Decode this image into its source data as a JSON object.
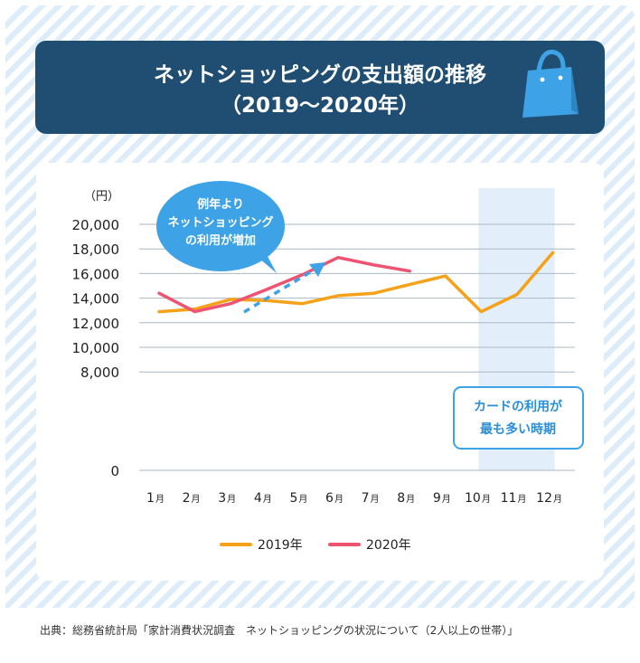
{
  "title": {
    "line1": "ネットショッピングの支出額の推移",
    "line2": "（2019〜2020年）"
  },
  "icons": {
    "title_icon": "shopping-bag-icon"
  },
  "source": "出典：総務省統計局「家計消費状況調査　ネットショッピングの状況について（2人以上の世帯）」",
  "chart_data": {
    "type": "line",
    "title": "ネットショッピングの支出額の推移（2019〜2020年）",
    "ylabel": "（円）",
    "xlabel": "",
    "ylim": [
      0,
      20000
    ],
    "yticks": [
      0,
      8000,
      10000,
      12000,
      14000,
      16000,
      18000,
      20000
    ],
    "ytick_labels": [
      "0",
      "8,000",
      "10,000",
      "12,000",
      "14,000",
      "16,000",
      "18,000",
      "20,000"
    ],
    "categories": [
      "1",
      "2",
      "3",
      "4",
      "5",
      "6",
      "7",
      "8",
      "9",
      "10",
      "11",
      "12"
    ],
    "month_suffix": "月",
    "series": [
      {
        "name": "2019年",
        "color": "#f5a21a",
        "values": [
          12900,
          13100,
          13900,
          13800,
          13550,
          14200,
          14400,
          15100,
          15800,
          12900,
          14300,
          17700
        ]
      },
      {
        "name": "2020年",
        "color": "#ee5472",
        "values": [
          14400,
          12900,
          13550,
          14700,
          15900,
          17300,
          16700,
          16200,
          null,
          null,
          null,
          null
        ]
      }
    ],
    "highlight": {
      "from": "10",
      "to": "12",
      "label_line1": "カードの利用が",
      "label_line2": "最も多い時期",
      "color": "#e2effa"
    },
    "annotation": {
      "line1": "例年より",
      "line2": "ネットショッピング",
      "line3": "の利用が増加",
      "color": "#3ea3e6"
    },
    "legend": {
      "placement": "bottom"
    }
  }
}
